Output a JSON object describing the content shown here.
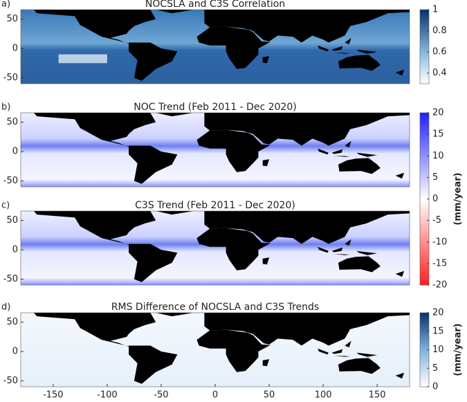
{
  "chart_data": [
    {
      "type": "map",
      "panel_label": "a)",
      "title": "NOCSLA and C3S Correlation",
      "xlim": [
        -180,
        180
      ],
      "ylim": [
        -60,
        66
      ],
      "yticks": [
        -50,
        0,
        50
      ],
      "colorbar": {
        "clim": [
          0.3,
          1
        ],
        "ticks": [
          0.4,
          0.6,
          0.8,
          1
        ]
      }
    },
    {
      "type": "map",
      "panel_label": "b)",
      "title": "NOC  Trend (Feb 2011 - Dec 2020)",
      "xlim": [
        -180,
        180
      ],
      "ylim": [
        -60,
        66
      ],
      "yticks": [
        -50,
        0,
        50
      ],
      "colorbar": {
        "clim": [
          -20,
          20
        ],
        "ticks": [
          -20,
          -15,
          -10,
          -5,
          0,
          5,
          10,
          15,
          20
        ],
        "label": "(mm/year)"
      }
    },
    {
      "type": "map",
      "panel_label": "c)",
      "title": "C3S Trend (Feb 2011 - Dec 2020)",
      "xlim": [
        -180,
        180
      ],
      "ylim": [
        -60,
        66
      ],
      "yticks": [
        -50,
        0,
        50
      ]
    },
    {
      "type": "map",
      "panel_label": "d)",
      "title": "RMS Difference of NOCSLA and C3S Trends",
      "xlim": [
        -180,
        180
      ],
      "ylim": [
        -60,
        66
      ],
      "yticks": [
        -50,
        0,
        50
      ],
      "xticks": [
        -150,
        -100,
        -50,
        0,
        50,
        100,
        150
      ],
      "colorbar": {
        "clim": [
          0,
          20
        ],
        "ticks": [
          0,
          5,
          10,
          15,
          20
        ],
        "label": "(mm/year)"
      }
    }
  ]
}
